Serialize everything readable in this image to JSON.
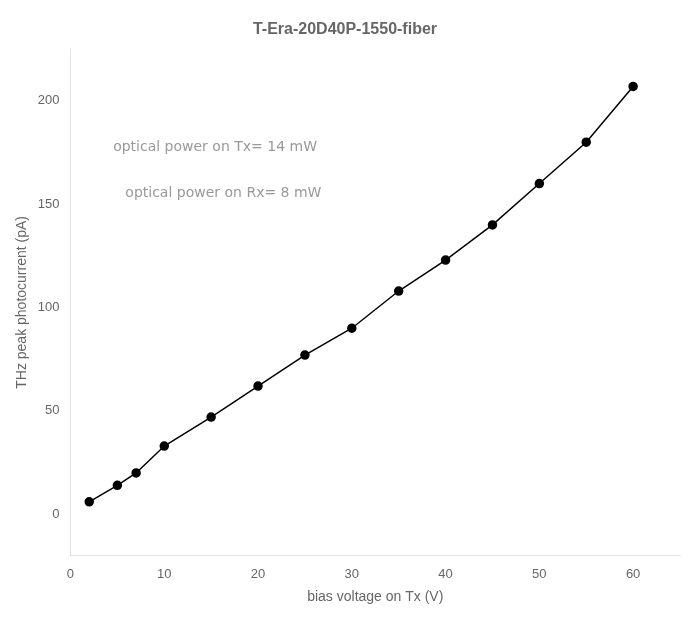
{
  "chart_data": {
    "type": "line",
    "title": "T-Era-20D40P-1550-fiber",
    "xlabel": "bias voltage on Tx (V)",
    "ylabel": "THz peak photocurrent (pA)",
    "annotations": [
      "optical power on Tx= 14 mW",
      "optical power on Rx= 8 mW"
    ],
    "x": [
      2,
      5,
      7,
      10,
      15,
      20,
      25,
      30,
      35,
      40,
      45,
      50,
      55,
      60
    ],
    "values": [
      6,
      14,
      20,
      33,
      47,
      62,
      77,
      90,
      108,
      123,
      140,
      160,
      180,
      207
    ],
    "color": "#000000",
    "marker": "circle",
    "xlim": [
      0,
      65
    ],
    "ylim": [
      -20,
      225
    ],
    "xticks": [
      0,
      10,
      20,
      30,
      40,
      50,
      60
    ],
    "yticks": [
      0,
      50,
      100,
      150,
      200
    ],
    "grid": false
  }
}
